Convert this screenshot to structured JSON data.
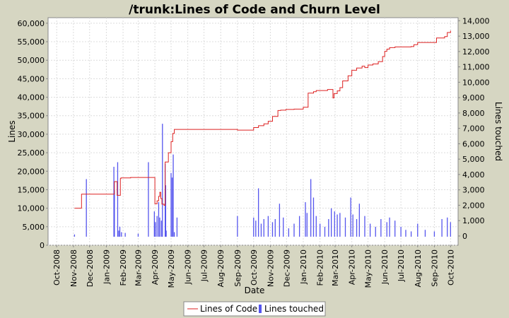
{
  "chart_data": {
    "type": "line",
    "title": "/trunk:Lines of Code and Churn Level",
    "xlabel": "Date",
    "ylabel": "Lines",
    "y2label": "Lines touched",
    "x_tick_labels": [
      "Oct-2008",
      "Nov-2008",
      "Dec-2008",
      "Jan-2009",
      "Feb-2009",
      "Mar-2009",
      "Apr-2009",
      "May-2009",
      "Jun-2009",
      "Jul-2009",
      "Aug-2009",
      "Sep-2009",
      "Oct-2009",
      "Nov-2009",
      "Dec-2009",
      "Jan-2010",
      "Feb-2010",
      "Mar-2010",
      "Apr-2010",
      "May-2010",
      "Jun-2010",
      "Jul-2010",
      "Aug-2010",
      "Sep-2010",
      "Oct-2010"
    ],
    "y_ticks": [
      "0",
      "5,000",
      "10,000",
      "15,000",
      "20,000",
      "25,000",
      "30,000",
      "35,000",
      "40,000",
      "45,000",
      "50,000",
      "55,000",
      "60,000"
    ],
    "y2_ticks": [
      "0",
      "1,000",
      "2,000",
      "3,000",
      "4,000",
      "5,000",
      "6,000",
      "7,000",
      "8,000",
      "9,000",
      "10,000",
      "11,000",
      "12,000",
      "13,000",
      "14,000"
    ],
    "ylim": [
      0,
      61500
    ],
    "y2lim": [
      -600,
      14200
    ],
    "xlim": [
      "2008-09-15",
      "2010-10-15"
    ],
    "grid": true,
    "legend_position": "bottom",
    "colors": {
      "loc": "#dd2222",
      "churn": "#5555ee",
      "grid": "#dcdcdc",
      "background": "#ffffff",
      "page": "#d6d6c2"
    },
    "series": [
      {
        "name": "Lines of Code",
        "type": "step-line",
        "x": [
          "2008-11-03",
          "2008-11-15",
          "2008-11-16",
          "2008-12-10",
          "2009-01-15",
          "2009-01-16",
          "2009-01-21",
          "2009-01-27",
          "2009-01-28",
          "2009-02-15",
          "2009-03-20",
          "2009-03-31",
          "2009-04-01",
          "2009-04-05",
          "2009-04-08",
          "2009-04-10",
          "2009-04-12",
          "2009-04-14",
          "2009-04-18",
          "2009-04-20",
          "2009-04-21",
          "2009-04-26",
          "2009-05-01",
          "2009-05-04",
          "2009-05-07",
          "2009-05-10",
          "2009-05-15",
          "2009-06-15",
          "2009-07-15",
          "2009-08-15",
          "2009-09-01",
          "2009-09-25",
          "2009-10-01",
          "2009-10-10",
          "2009-10-20",
          "2009-10-28",
          "2009-11-05",
          "2009-11-15",
          "2009-11-20",
          "2009-11-30",
          "2009-12-15",
          "2010-01-01",
          "2010-01-10",
          "2010-01-20",
          "2010-01-25",
          "2010-02-01",
          "2010-02-15",
          "2010-02-25",
          "2010-02-27",
          "2010-03-05",
          "2010-03-10",
          "2010-03-15",
          "2010-03-25",
          "2010-04-01",
          "2010-04-10",
          "2010-04-20",
          "2010-04-25",
          "2010-05-01",
          "2010-05-10",
          "2010-05-20",
          "2010-05-28",
          "2010-06-01",
          "2010-06-05",
          "2010-06-10",
          "2010-06-20",
          "2010-07-01",
          "2010-07-10",
          "2010-07-20",
          "2010-07-25",
          "2010-08-01",
          "2010-08-15",
          "2010-09-01",
          "2010-09-05",
          "2010-09-15",
          "2010-09-20",
          "2010-09-25",
          "2010-10-01"
        ],
        "y": [
          10000,
          10000,
          13800,
          13800,
          13800,
          17200,
          13500,
          18000,
          18200,
          18300,
          18300,
          18300,
          11200,
          12000,
          13200,
          14300,
          12600,
          11100,
          10800,
          22500,
          22500,
          25000,
          28000,
          30200,
          31300,
          31300,
          31300,
          31300,
          31300,
          31300,
          31100,
          31100,
          31800,
          32300,
          32800,
          33500,
          34800,
          36400,
          36500,
          36700,
          36800,
          37300,
          41100,
          41500,
          41800,
          41800,
          42100,
          39800,
          41000,
          41700,
          42600,
          44400,
          45800,
          47300,
          47900,
          48400,
          48000,
          48700,
          49000,
          49600,
          51000,
          52400,
          53000,
          53400,
          53600,
          53600,
          53600,
          53700,
          54200,
          54800,
          54800,
          54800,
          56000,
          56000,
          56400,
          57500,
          58000
        ]
      },
      {
        "name": "Lines touched",
        "type": "impulse",
        "x": [
          "2008-11-03",
          "2008-11-25",
          "2009-01-15",
          "2009-01-16",
          "2009-01-22",
          "2009-01-24",
          "2009-01-26",
          "2009-01-29",
          "2009-02-05",
          "2009-03-01",
          "2009-03-20",
          "2009-03-31",
          "2009-04-02",
          "2009-04-05",
          "2009-04-08",
          "2009-04-10",
          "2009-04-13",
          "2009-04-15",
          "2009-04-20",
          "2009-04-21",
          "2009-04-22",
          "2009-05-01",
          "2009-05-03",
          "2009-05-05",
          "2009-05-07",
          "2009-05-12",
          "2009-09-01",
          "2009-10-01",
          "2009-10-05",
          "2009-10-10",
          "2009-10-15",
          "2009-10-20",
          "2009-10-28",
          "2009-11-05",
          "2009-11-10",
          "2009-11-18",
          "2009-11-25",
          "2009-12-05",
          "2009-12-15",
          "2009-12-25",
          "2010-01-05",
          "2010-01-08",
          "2010-01-15",
          "2010-01-20",
          "2010-01-25",
          "2010-02-01",
          "2010-02-10",
          "2010-02-17",
          "2010-02-22",
          "2010-02-28",
          "2010-03-05",
          "2010-03-10",
          "2010-03-20",
          "2010-03-30",
          "2010-04-03",
          "2010-04-10",
          "2010-04-15",
          "2010-04-25",
          "2010-05-05",
          "2010-05-15",
          "2010-05-25",
          "2010-06-05",
          "2010-06-10",
          "2010-06-20",
          "2010-07-01",
          "2010-07-10",
          "2010-07-20",
          "2010-08-01",
          "2010-08-15",
          "2010-09-01",
          "2010-09-15",
          "2010-09-25",
          "2010-10-01"
        ],
        "values": [
          100,
          3700,
          4500,
          3000,
          4800,
          350,
          600,
          250,
          200,
          150,
          4800,
          1600,
          900,
          1300,
          2200,
          1200,
          1000,
          7300,
          4700,
          3300,
          350,
          4100,
          3800,
          5300,
          250,
          1200,
          1300,
          1200,
          1000,
          3100,
          800,
          1100,
          1300,
          900,
          1100,
          2100,
          1200,
          500,
          800,
          1300,
          2200,
          1500,
          3700,
          2500,
          1300,
          800,
          600,
          1100,
          1800,
          1600,
          1400,
          1500,
          1200,
          2500,
          1400,
          1100,
          2100,
          1300,
          800,
          600,
          1100,
          900,
          1200,
          1000,
          600,
          400,
          300,
          800,
          400,
          300,
          1100,
          1200,
          900
        ]
      }
    ]
  }
}
